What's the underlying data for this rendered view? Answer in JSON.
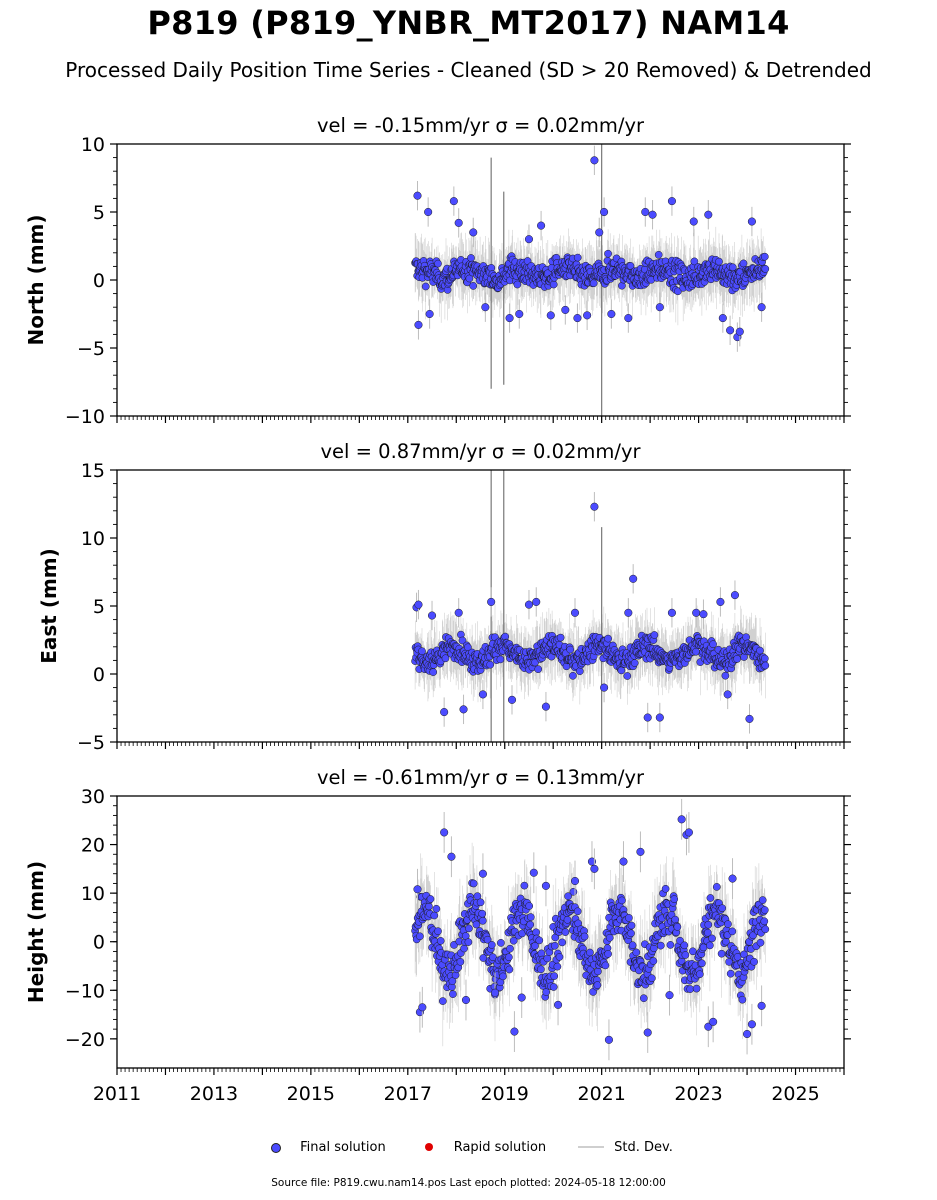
{
  "figure": {
    "title": "P819 (P819_YNBR_MT2017) NAM14",
    "subtitle": "Processed Daily Position Time Series - Cleaned (SD > 20 Removed) & Detrended",
    "source": "Source file: P819.cwu.nam14.pos  Last epoch plotted: 2024-05-18 12:00:00"
  },
  "legend": {
    "final": "Final solution",
    "rapid": "Rapid solution",
    "std": "Std. Dev."
  },
  "colors": {
    "final_fill": "#4b4bff",
    "final_edge": "#1a1a1a",
    "rapid": "#e00000",
    "std": "#bdbdbd"
  },
  "chart_data": [
    {
      "type": "scatter",
      "panel": "north",
      "title": "vel = -0.15mm/yr   σ = 0.02mm/yr",
      "ylabel": "North (mm)",
      "xlim": [
        2011,
        2026
      ],
      "ylim": [
        -10,
        10
      ],
      "yticks": [
        -10,
        -5,
        0,
        5,
        10
      ],
      "ytick_labels": [
        "−10",
        "−5",
        "0",
        "5",
        "10"
      ],
      "xticks": [
        2011,
        2013,
        2015,
        2017,
        2019,
        2021,
        2023,
        2025
      ],
      "xtick_labels": [],
      "data_start": 2017.15,
      "data_end": 2024.38,
      "points": [
        [
          2017.2,
          6.2
        ],
        [
          2017.22,
          -3.3
        ],
        [
          2017.45,
          -2.5
        ],
        [
          2017.42,
          5.0
        ],
        [
          2017.95,
          5.8
        ],
        [
          2018.05,
          4.2
        ],
        [
          2018.35,
          3.5
        ],
        [
          2018.6,
          -2.0
        ],
        [
          2019.1,
          -2.8
        ],
        [
          2019.3,
          -2.5
        ],
        [
          2019.5,
          3.0
        ],
        [
          2019.75,
          4.0
        ],
        [
          2019.95,
          -2.6
        ],
        [
          2020.25,
          -2.2
        ],
        [
          2020.5,
          -2.8
        ],
        [
          2020.7,
          -2.6
        ],
        [
          2020.85,
          8.8
        ],
        [
          2020.95,
          3.5
        ],
        [
          2021.05,
          5.0
        ],
        [
          2021.2,
          -2.5
        ],
        [
          2021.55,
          -2.8
        ],
        [
          2021.9,
          5.0
        ],
        [
          2022.05,
          4.8
        ],
        [
          2022.2,
          -2.0
        ],
        [
          2022.45,
          5.8
        ],
        [
          2022.9,
          4.3
        ],
        [
          2023.2,
          4.8
        ],
        [
          2023.5,
          -2.8
        ],
        [
          2023.65,
          -3.7
        ],
        [
          2023.8,
          -4.2
        ],
        [
          2023.85,
          -3.8
        ],
        [
          2024.1,
          4.3
        ],
        [
          2024.3,
          -2.0
        ]
      ],
      "error_spikes": [
        [
          2018.72,
          -8.0,
          9.0
        ],
        [
          2018.98,
          -7.7,
          6.5
        ],
        [
          2021.0,
          -10.0,
          10.0
        ]
      ]
    },
    {
      "type": "scatter",
      "panel": "east",
      "title": "vel = 0.87mm/yr   σ = 0.02mm/yr",
      "ylabel": "East (mm)",
      "xlim": [
        2011,
        2026
      ],
      "ylim": [
        -5,
        15
      ],
      "yticks": [
        -5,
        0,
        5,
        10,
        15
      ],
      "ytick_labels": [
        "−5",
        "0",
        "5",
        "10",
        "15"
      ],
      "xticks": [
        2011,
        2013,
        2015,
        2017,
        2019,
        2021,
        2023,
        2025
      ],
      "xtick_labels": [],
      "data_start": 2017.15,
      "data_end": 2024.38,
      "points": [
        [
          2017.18,
          4.9
        ],
        [
          2017.22,
          5.1
        ],
        [
          2017.5,
          4.3
        ],
        [
          2017.75,
          -2.8
        ],
        [
          2018.05,
          4.5
        ],
        [
          2018.15,
          -2.6
        ],
        [
          2018.55,
          -1.5
        ],
        [
          2018.72,
          5.3
        ],
        [
          2019.15,
          -1.9
        ],
        [
          2019.5,
          5.1
        ],
        [
          2019.65,
          5.3
        ],
        [
          2019.85,
          -2.4
        ],
        [
          2020.45,
          4.5
        ],
        [
          2020.85,
          12.3
        ],
        [
          2021.05,
          -1.0
        ],
        [
          2021.55,
          4.5
        ],
        [
          2021.65,
          7.0
        ],
        [
          2021.95,
          -3.2
        ],
        [
          2022.2,
          -3.2
        ],
        [
          2022.45,
          4.5
        ],
        [
          2022.95,
          4.5
        ],
        [
          2023.1,
          4.4
        ],
        [
          2023.45,
          5.3
        ],
        [
          2023.6,
          -1.5
        ],
        [
          2023.75,
          5.8
        ],
        [
          2024.05,
          -3.3
        ]
      ],
      "error_spikes": [
        [
          2018.72,
          -5.0,
          15.0
        ],
        [
          2018.98,
          -5.0,
          15.0
        ],
        [
          2021.0,
          -5.0,
          10.8
        ]
      ]
    },
    {
      "type": "scatter",
      "panel": "height",
      "title": "vel = -0.61mm/yr   σ = 0.13mm/yr",
      "ylabel": "Height (mm)",
      "xlim": [
        2011,
        2026
      ],
      "ylim": [
        -26,
        30
      ],
      "yticks": [
        -20,
        -10,
        0,
        10,
        20,
        30
      ],
      "ytick_labels": [
        "−20",
        "−10",
        "0",
        "10",
        "20",
        "30"
      ],
      "xticks": [
        2011,
        2013,
        2015,
        2017,
        2019,
        2021,
        2023,
        2025
      ],
      "xtick_labels": [
        "2011",
        "2013",
        "2015",
        "2017",
        "2019",
        "2021",
        "2023",
        "2025"
      ],
      "data_start": 2017.15,
      "data_end": 2024.38,
      "points": [
        [
          2017.2,
          10.8
        ],
        [
          2017.25,
          -14.5
        ],
        [
          2017.3,
          -13.5
        ],
        [
          2017.75,
          22.5
        ],
        [
          2017.9,
          17.5
        ],
        [
          2018.2,
          -12.0
        ],
        [
          2018.55,
          14.0
        ],
        [
          2018.8,
          -10.5
        ],
        [
          2019.2,
          -18.5
        ],
        [
          2019.35,
          -11.5
        ],
        [
          2019.6,
          14.2
        ],
        [
          2019.85,
          11.5
        ],
        [
          2020.1,
          -13.0
        ],
        [
          2020.45,
          12.5
        ],
        [
          2020.8,
          16.5
        ],
        [
          2020.85,
          15.0
        ],
        [
          2021.15,
          -20.2
        ],
        [
          2021.45,
          16.5
        ],
        [
          2021.8,
          18.5
        ],
        [
          2021.95,
          -18.7
        ],
        [
          2022.4,
          -11.0
        ],
        [
          2022.65,
          25.2
        ],
        [
          2022.75,
          22.0
        ],
        [
          2022.8,
          22.5
        ],
        [
          2023.2,
          -17.5
        ],
        [
          2023.3,
          -16.5
        ],
        [
          2023.7,
          13.0
        ],
        [
          2024.0,
          -19.0
        ],
        [
          2024.1,
          -17.0
        ],
        [
          2024.3,
          -13.2
        ]
      ],
      "error_spikes": []
    }
  ]
}
